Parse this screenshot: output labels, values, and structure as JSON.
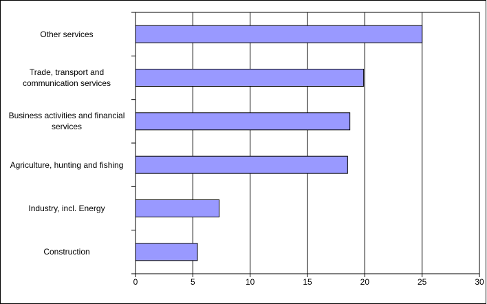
{
  "chart_data": {
    "type": "barh",
    "categories": [
      "Other services",
      "Trade, transport and communication services",
      "Business activities and financial services",
      "Agriculture, hunting and fishing",
      "Industry, incl. Energy",
      "Construction"
    ],
    "values": [
      25,
      19.9,
      18.7,
      18.5,
      7.3,
      5.4
    ],
    "color": "#9999ff",
    "xlim": [
      0,
      30
    ],
    "xticks": [
      0,
      5,
      10,
      15,
      20,
      25,
      30
    ],
    "grid": true
  }
}
